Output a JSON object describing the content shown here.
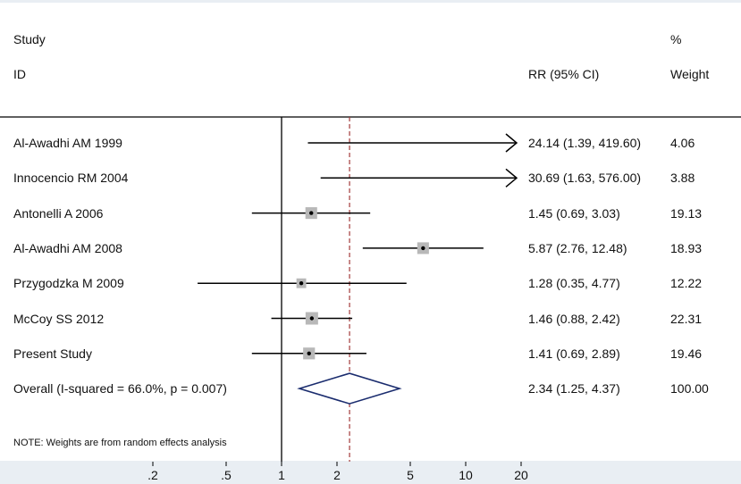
{
  "header": {
    "study_line1": "Study",
    "study_line2": "ID",
    "rr_label": "RR (95% CI)",
    "weight_line1": "%",
    "weight_line2": "Weight"
  },
  "chart_data": {
    "type": "forest",
    "scale": "log",
    "null_value": 1,
    "overall_reference": 2.34,
    "xticks": [
      0.2,
      0.5,
      1,
      2,
      5,
      10,
      20
    ],
    "xtick_labels": [
      ".2",
      ".5",
      "1",
      "2",
      "5",
      "10",
      "20"
    ],
    "axis_range": [
      0.1333,
      20
    ],
    "studies": [
      {
        "label": "Al-Awadhi AM 1999",
        "rr": 24.14,
        "lo": 1.39,
        "hi": 419.6,
        "ci_text": "24.14 (1.39, 419.60)",
        "weight": 4.06,
        "weight_text": "4.06",
        "arrow": true
      },
      {
        "label": "Innocencio RM 2004",
        "rr": 30.69,
        "lo": 1.63,
        "hi": 576.0,
        "ci_text": "30.69 (1.63, 576.00)",
        "weight": 3.88,
        "weight_text": "3.88",
        "arrow": true
      },
      {
        "label": "Antonelli A 2006",
        "rr": 1.45,
        "lo": 0.69,
        "hi": 3.03,
        "ci_text": "1.45 (0.69, 3.03)",
        "weight": 19.13,
        "weight_text": "19.13",
        "arrow": false
      },
      {
        "label": "Al-Awadhi AM 2008",
        "rr": 5.87,
        "lo": 2.76,
        "hi": 12.48,
        "ci_text": "5.87 (2.76, 12.48)",
        "weight": 18.93,
        "weight_text": "18.93",
        "arrow": false
      },
      {
        "label": "Przygodzka M 2009",
        "rr": 1.28,
        "lo": 0.35,
        "hi": 4.77,
        "ci_text": "1.28 (0.35, 4.77)",
        "weight": 12.22,
        "weight_text": "12.22",
        "arrow": false
      },
      {
        "label": "McCoy SS 2012",
        "rr": 1.46,
        "lo": 0.88,
        "hi": 2.42,
        "ci_text": "1.46 (0.88, 2.42)",
        "weight": 22.31,
        "weight_text": "22.31",
        "arrow": false
      },
      {
        "label": "Present Study",
        "rr": 1.41,
        "lo": 0.69,
        "hi": 2.89,
        "ci_text": "1.41 (0.69, 2.89)",
        "weight": 19.46,
        "weight_text": "19.46",
        "arrow": false
      }
    ],
    "overall": {
      "label": "Overall  (I-squared = 66.0%, p = 0.007)",
      "rr": 2.34,
      "lo": 1.25,
      "hi": 4.37,
      "ci_text": "2.34 (1.25, 4.37)",
      "weight_text": "100.00"
    },
    "note": "NOTE: Weights are from random effects analysis",
    "colors": {
      "line": "#000000",
      "box": "#b8b8b8",
      "diamond": "#1a2c6e",
      "reference": "#a33a3a",
      "background": "#e9eef3",
      "panel": "#ffffff"
    }
  }
}
